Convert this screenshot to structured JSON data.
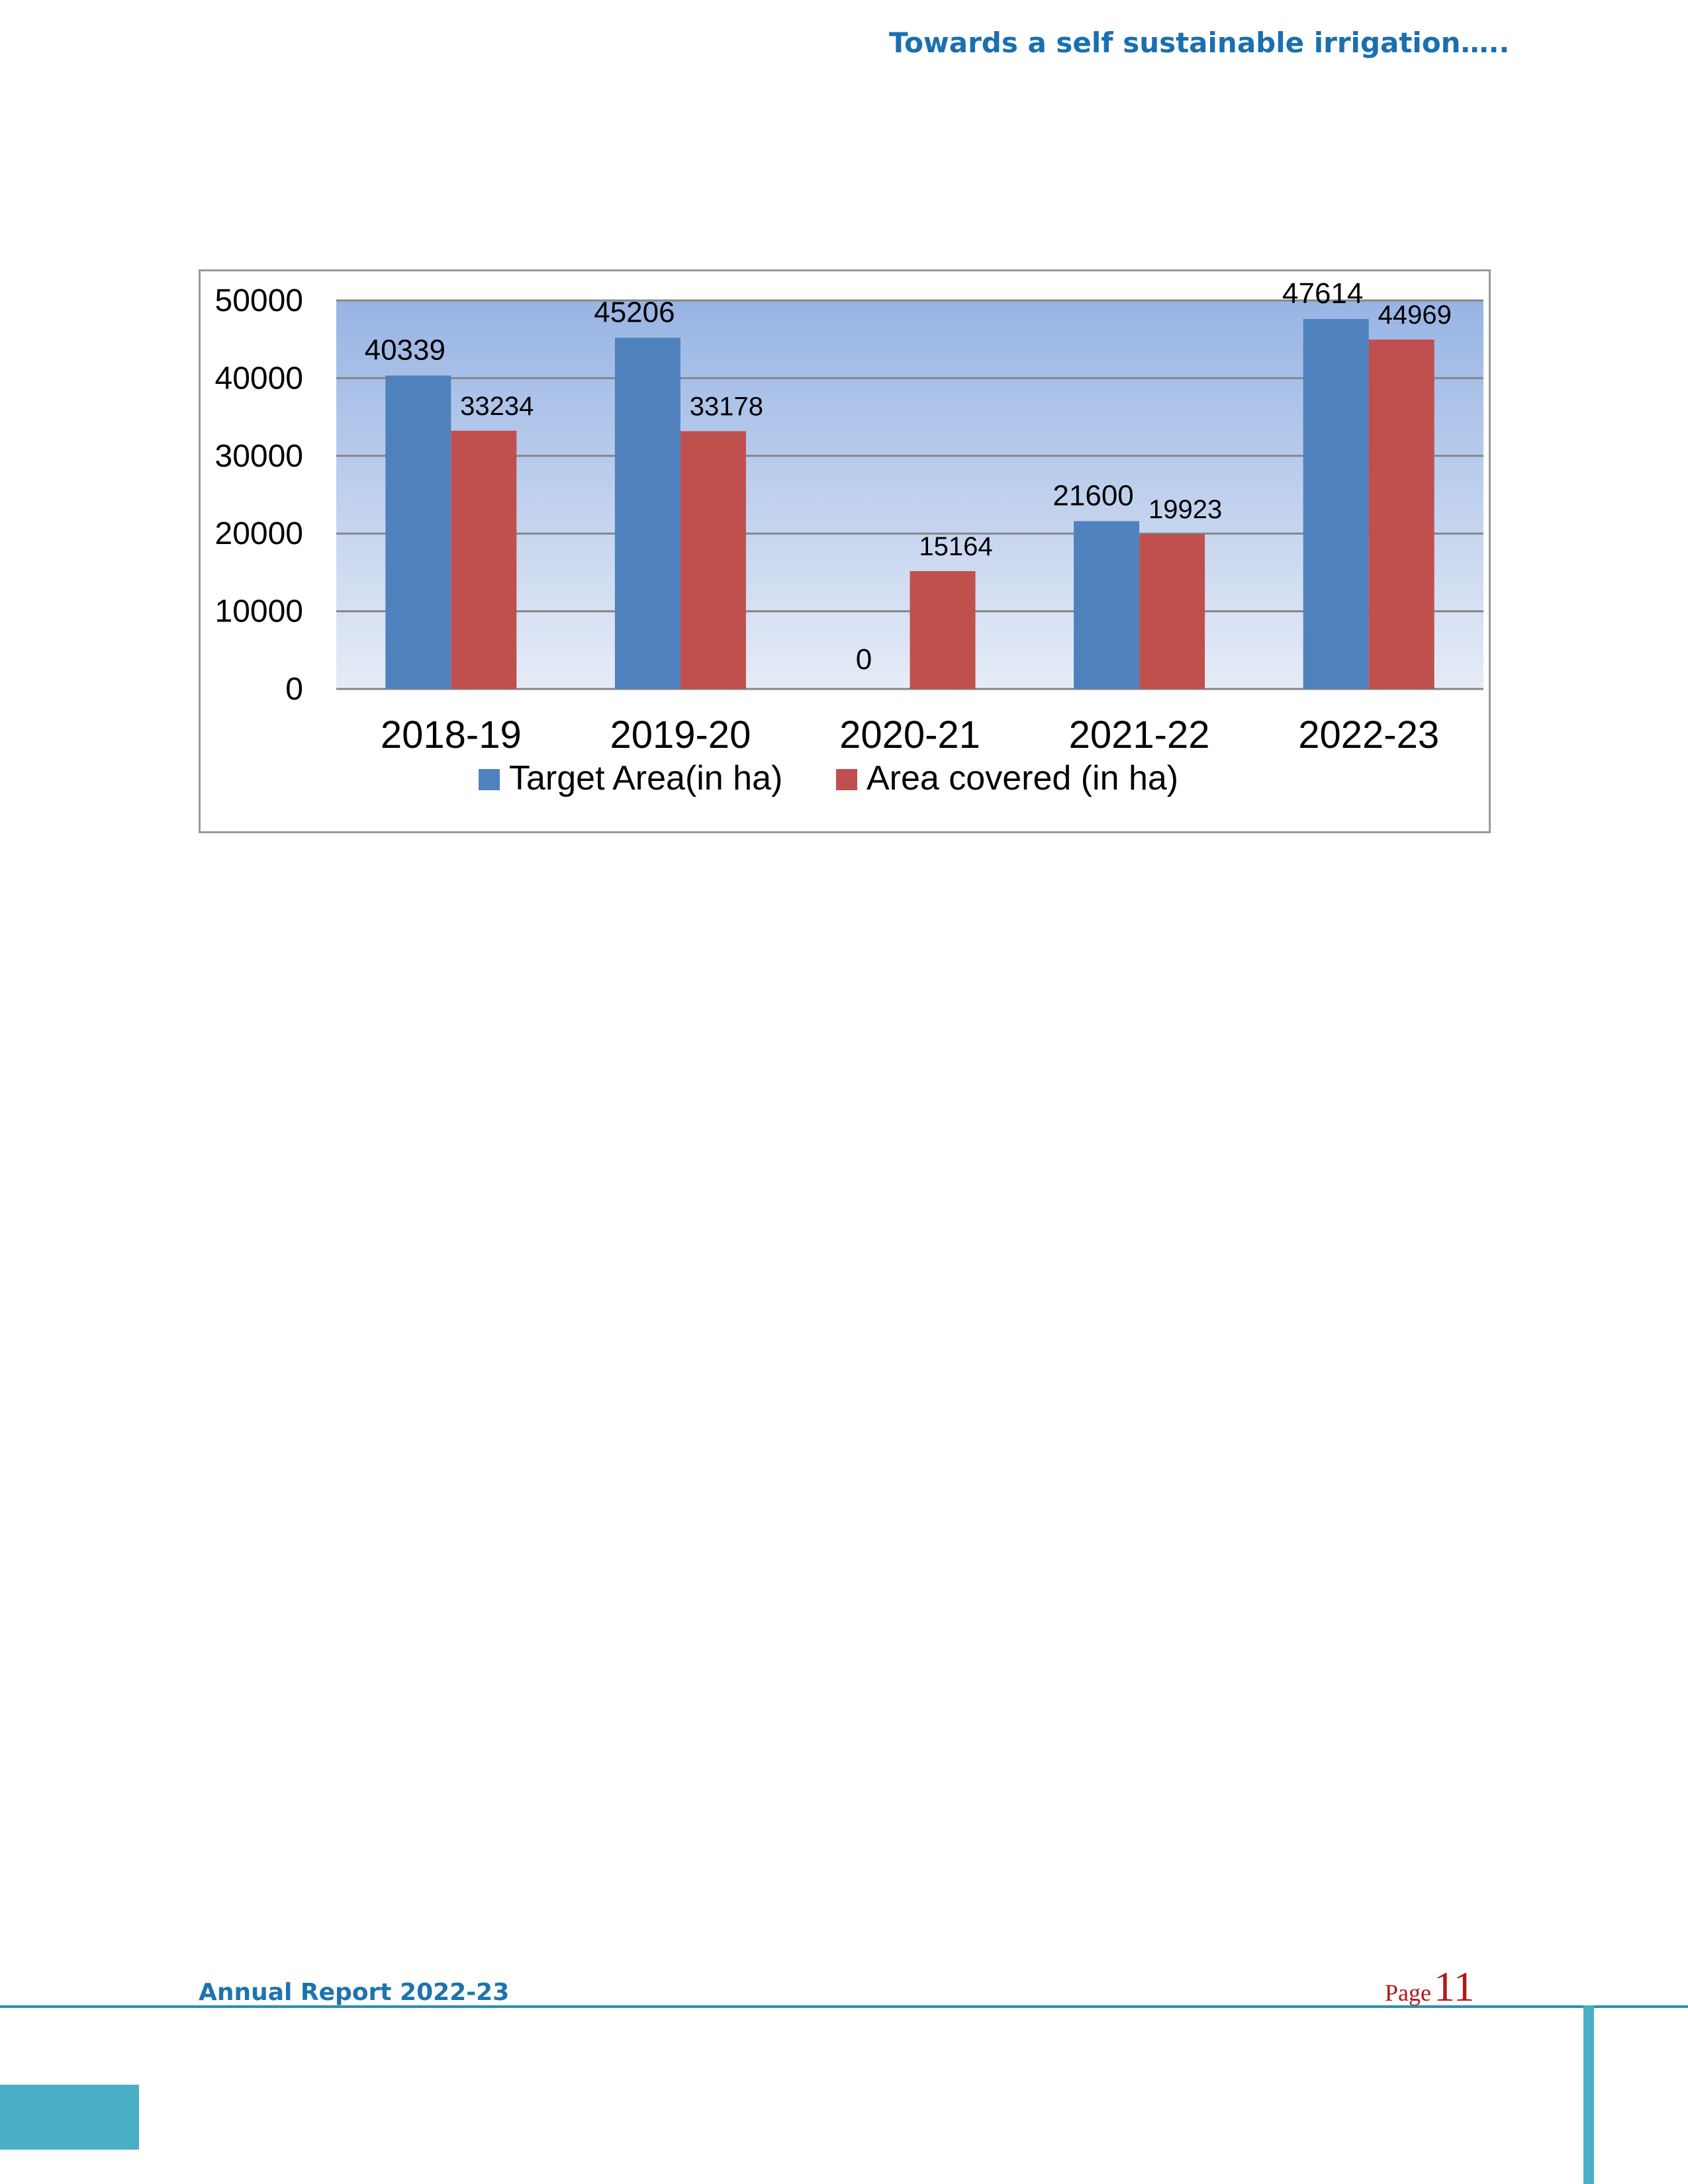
{
  "header": {
    "tagline": "Towards a self sustainable irrigation….."
  },
  "chart_data": {
    "type": "bar",
    "categories": [
      "2018-19",
      "2019-20",
      "2020-21",
      "2021-22",
      "2022-23"
    ],
    "series": [
      {
        "name": "Target Area(in ha)",
        "values": [
          40339,
          45206,
          0,
          21600,
          47614
        ],
        "color": "#4f81bd"
      },
      {
        "name": "Area covered (in ha)",
        "values": [
          33234,
          33178,
          15164,
          19923,
          44969
        ],
        "color": "#c0504d"
      }
    ],
    "yticks": [
      0,
      10000,
      20000,
      30000,
      40000,
      50000
    ],
    "ylim": [
      0,
      50000
    ],
    "grid": true,
    "legend": "bottom",
    "title": "",
    "xlabel": "",
    "ylabel": ""
  },
  "footer": {
    "report_title": "Annual Report 2022-23",
    "page_label": "Page",
    "page_number": "11"
  }
}
